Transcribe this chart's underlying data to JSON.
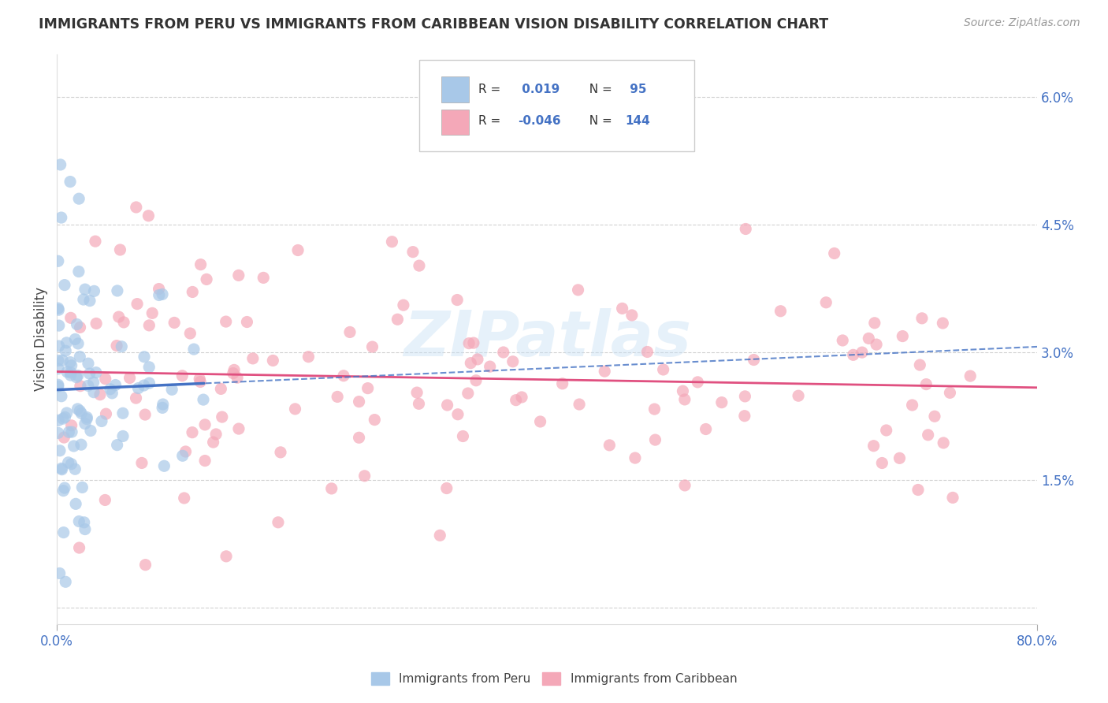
{
  "title": "IMMIGRANTS FROM PERU VS IMMIGRANTS FROM CARIBBEAN VISION DISABILITY CORRELATION CHART",
  "source": "Source: ZipAtlas.com",
  "ylabel": "Vision Disability",
  "ytick_labels": [
    "",
    "1.5%",
    "3.0%",
    "4.5%",
    "6.0%"
  ],
  "ytick_values": [
    0.0,
    0.015,
    0.03,
    0.045,
    0.06
  ],
  "xlim": [
    0.0,
    0.8
  ],
  "ylim": [
    -0.002,
    0.065
  ],
  "watermark": "ZIPatlas",
  "color_peru": "#a8c8e8",
  "color_caribbean": "#f4a8b8",
  "color_peru_line": "#4472c4",
  "color_caribbean_line": "#e05080",
  "color_axis": "#4472c4",
  "grid_color": "#cccccc",
  "background_color": "#ffffff"
}
